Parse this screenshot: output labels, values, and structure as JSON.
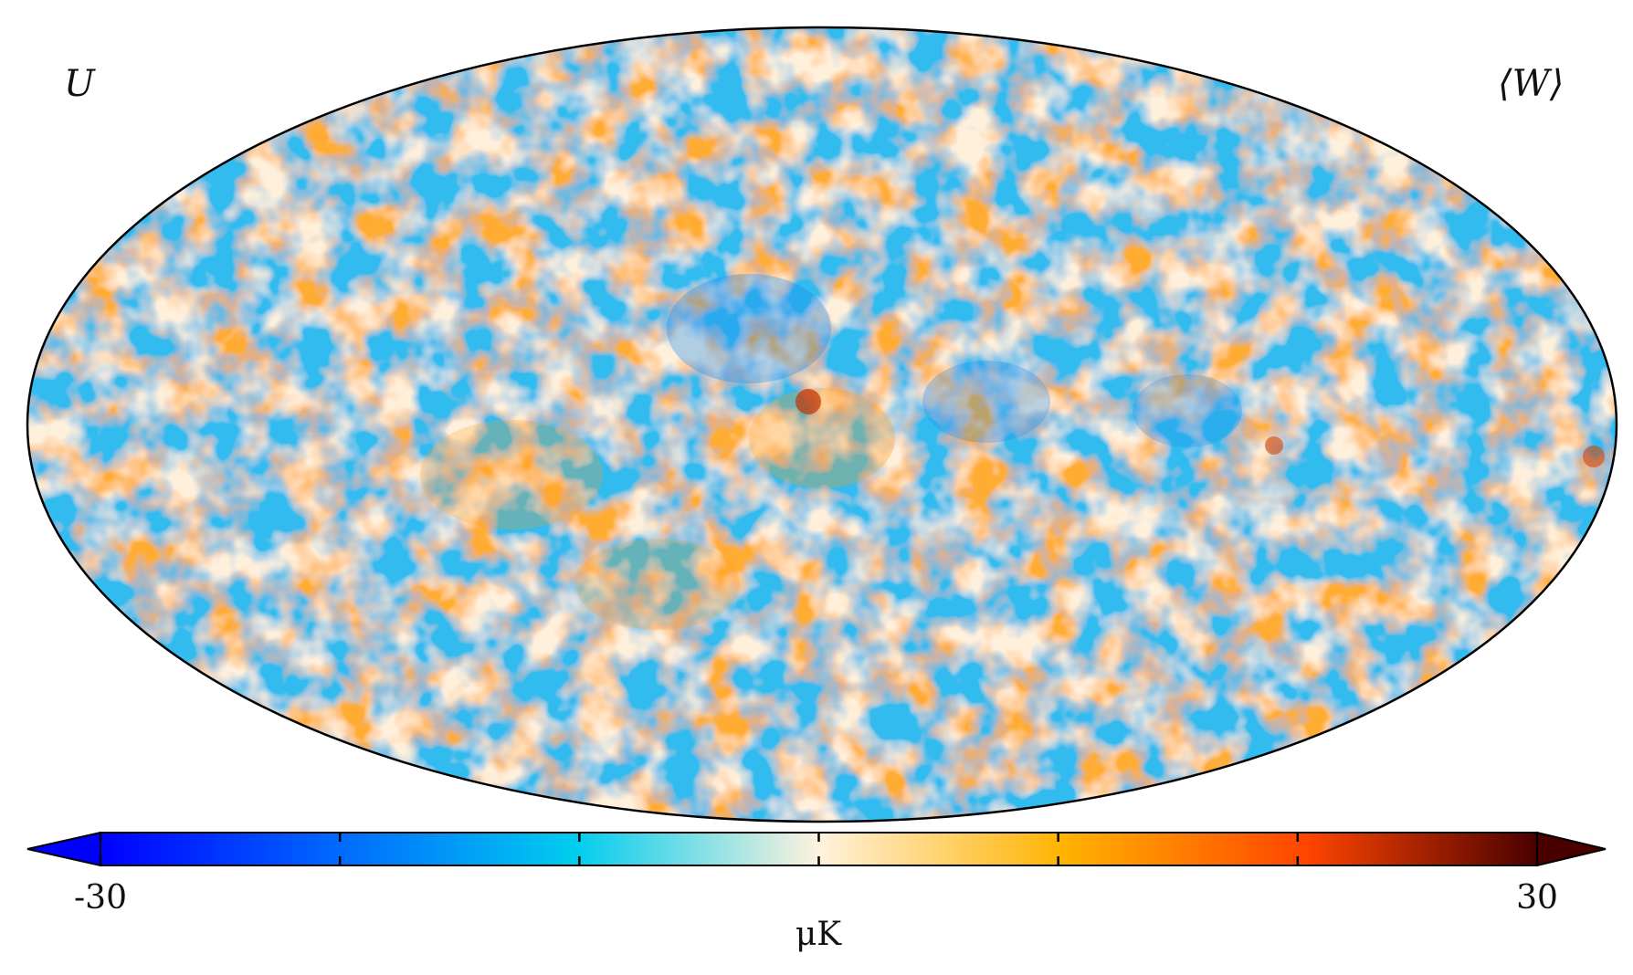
{
  "figure": {
    "stokes_label": "U",
    "band_label": "⟨W⟩",
    "projection": "Mollweide"
  },
  "colorbar": {
    "min_label": "-30",
    "max_label": "30",
    "unit_label": "μK",
    "min": -30,
    "max": 30,
    "tick_values": [
      -30,
      -20,
      -10,
      0,
      10,
      20,
      30
    ],
    "colors": [
      "#0000ff",
      "#0066ff",
      "#00ccee",
      "#fff2dd",
      "#ffb300",
      "#ff4400",
      "#4a0000"
    ]
  }
}
